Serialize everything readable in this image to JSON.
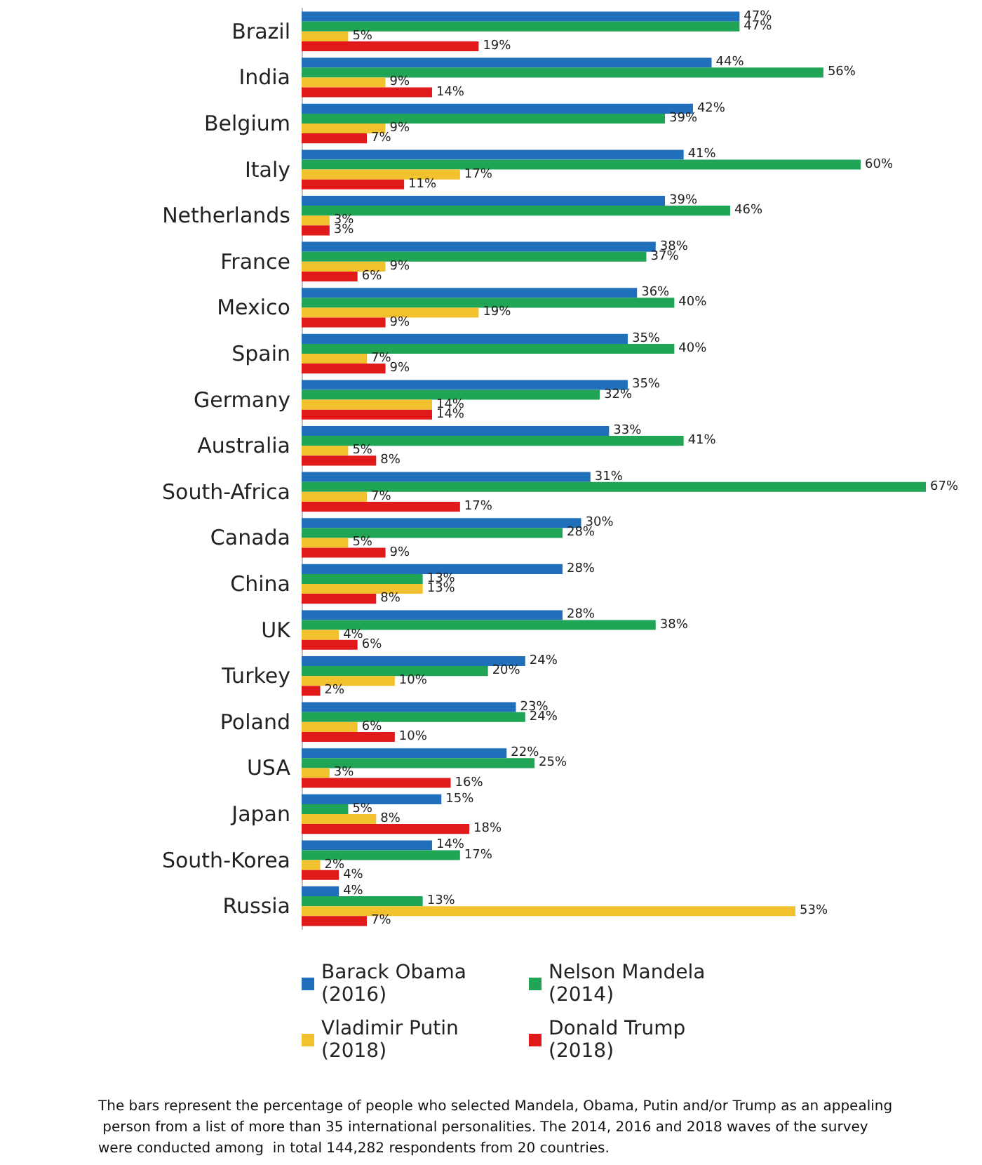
{
  "chart_data": {
    "type": "bar",
    "orientation": "horizontal",
    "legend": "bottom",
    "categories": [
      "Brazil",
      "India",
      "Belgium",
      "Italy",
      "Netherlands",
      "France",
      "Mexico",
      "Spain",
      "Germany",
      "Australia",
      "South-Africa",
      "Canada",
      "China",
      "UK",
      "Turkey",
      "Poland",
      "USA",
      "Japan",
      "South-Korea",
      "Russia"
    ],
    "series": [
      {
        "name": "Barack Obama (2016)",
        "color": "#1f6fba",
        "values": [
          47,
          44,
          42,
          41,
          39,
          38,
          36,
          35,
          35,
          33,
          31,
          30,
          28,
          28,
          24,
          23,
          22,
          15,
          14,
          4
        ],
        "value_labels": [
          "47%",
          "44%",
          "42%",
          "41%",
          "39%",
          "38%",
          "36%",
          "35%",
          "35%",
          "33%",
          "31%",
          "30%",
          "28%",
          "28%",
          "24%",
          "23%",
          "22%",
          "15%",
          "14%",
          "4%"
        ]
      },
      {
        "name": "Nelson Mandela (2014)",
        "color": "#1fa555",
        "values": [
          47,
          56,
          39,
          60,
          46,
          37,
          40,
          40,
          32,
          41,
          67,
          28,
          13,
          38,
          20,
          24,
          25,
          5,
          17,
          13
        ],
        "value_labels": [
          "47%",
          "56%",
          "39%",
          "60%",
          "46%",
          "37%",
          "40%",
          "40%",
          "32%",
          "41%",
          "67%",
          "28%",
          "13%",
          "38%",
          "20%",
          "24%",
          "25%",
          "5%",
          "17%",
          "13%"
        ]
      },
      {
        "name": "Vladimir Putin (2018)",
        "color": "#f2c12e",
        "values": [
          5,
          9,
          9,
          17,
          3,
          9,
          19,
          7,
          14,
          5,
          7,
          5,
          13,
          4,
          10,
          6,
          3,
          8,
          2,
          53
        ],
        "value_labels": [
          "5%",
          "9%",
          "9%",
          "17%",
          "3%",
          "9%",
          "19%",
          "7%",
          "14%",
          "5%",
          "7%",
          "5%",
          "13%",
          "4%",
          "10%",
          "6%",
          "3%",
          "8%",
          "2%",
          "53%"
        ]
      },
      {
        "name": "Donald Trump (2018)",
        "color": "#e0191b",
        "values": [
          19,
          14,
          7,
          11,
          3,
          6,
          9,
          9,
          14,
          8,
          17,
          9,
          8,
          6,
          2,
          10,
          16,
          18,
          4,
          7
        ],
        "value_labels": [
          "19%",
          "14%",
          "7%",
          "11%",
          "3%",
          "6%",
          "9%",
          "9%",
          "14%",
          "8%",
          "17%",
          "9%",
          "8%",
          "6%",
          "2%",
          "10%",
          "16%",
          "18%",
          "4%",
          "7%"
        ]
      }
    ],
    "annotations": [
      "The bars represent the percentage of people who selected Mandela, Obama, Putin and/or Trump as an appealing person from a list of more than 35 international personalities. The 2014, 2016 and 2018 waves of the survey were conducted among  in total 144,282 respondents from 20 countries."
    ]
  }
}
